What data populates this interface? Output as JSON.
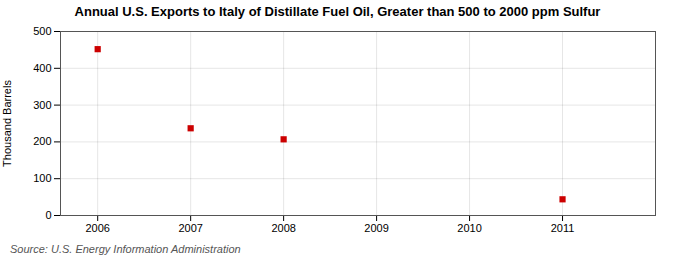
{
  "chart_data": {
    "type": "scatter",
    "title": "Annual U.S. Exports to Italy of Distillate Fuel Oil, Greater than 500 to 2000 ppm Sulfur",
    "ylabel": "Thousand Barrels",
    "annotations": [
      "Source: U.S. Energy Information Administration"
    ],
    "x": [
      2006,
      2007,
      2008,
      2009,
      2010,
      2011
    ],
    "values": [
      452,
      237,
      207,
      null,
      null,
      44
    ],
    "xlim": [
      2005.6,
      2012.0
    ],
    "xticks": [
      2006,
      2007,
      2008,
      2009,
      2010,
      2011
    ],
    "ylim": [
      0,
      500
    ],
    "yticks": [
      0,
      100,
      200,
      300,
      400,
      500
    ],
    "color": "#cc0000",
    "marker": "square",
    "grid": true
  }
}
